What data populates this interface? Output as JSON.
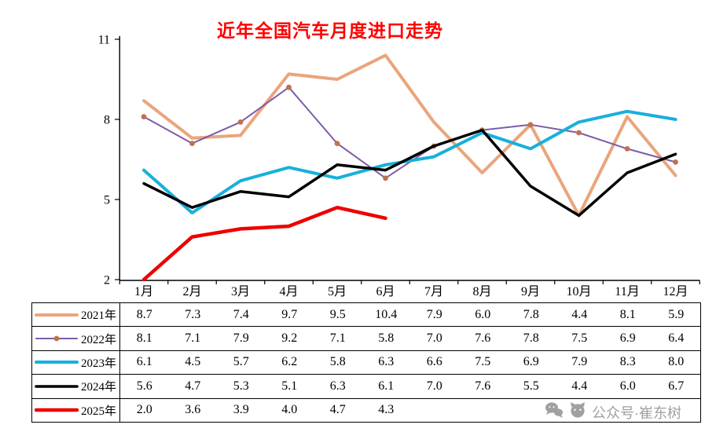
{
  "title": "近年全国汽车月度进口走势",
  "colors": {
    "title": "#FF0000",
    "axis": "#000000",
    "watermark": "#A0A0A0"
  },
  "watermark_text": "公众号·崔东树",
  "chart_data": {
    "type": "line",
    "title": "近年全国汽车月度进口走势",
    "categories": [
      "1月",
      "2月",
      "3月",
      "4月",
      "5月",
      "6月",
      "7月",
      "8月",
      "9月",
      "10月",
      "11月",
      "12月"
    ],
    "xlabel": "",
    "ylabel": "",
    "ylim": [
      2,
      11
    ],
    "yticks": [
      2,
      5,
      8,
      11
    ],
    "grid": false,
    "legend_position": "table-left",
    "series": [
      {
        "name": "2021年",
        "color": "#EAA57C",
        "width": 4,
        "markers": false,
        "values": [
          8.7,
          7.3,
          7.4,
          9.7,
          9.5,
          10.4,
          7.9,
          6.0,
          7.8,
          4.4,
          8.1,
          5.9
        ]
      },
      {
        "name": "2022年",
        "color": "#7C5CA8",
        "width": 2,
        "markers": true,
        "marker_color": "#C0714D",
        "values": [
          8.1,
          7.1,
          7.9,
          9.2,
          7.1,
          5.8,
          7.0,
          7.6,
          7.8,
          7.5,
          6.9,
          6.4
        ]
      },
      {
        "name": "2023年",
        "color": "#17B0DC",
        "width": 4,
        "markers": false,
        "values": [
          6.1,
          4.5,
          5.7,
          6.2,
          5.8,
          6.3,
          6.6,
          7.5,
          6.9,
          7.9,
          8.3,
          8.0
        ]
      },
      {
        "name": "2024年",
        "color": "#000000",
        "width": 3.5,
        "markers": false,
        "values": [
          5.6,
          4.7,
          5.3,
          5.1,
          6.3,
          6.1,
          7.0,
          7.6,
          5.5,
          4.4,
          6.0,
          6.7
        ]
      },
      {
        "name": "2025年",
        "color": "#EE0000",
        "width": 4.5,
        "markers": false,
        "values": [
          2.0,
          3.6,
          3.9,
          4.0,
          4.7,
          4.3
        ]
      }
    ]
  }
}
